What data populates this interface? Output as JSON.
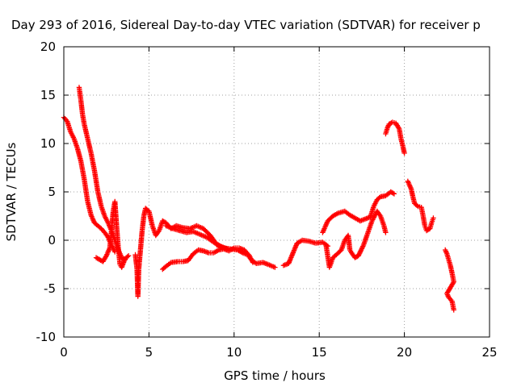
{
  "chart_data": {
    "type": "scatter",
    "title": "Day 293 of 2016, Sidereal Day-to-day VTEC variation (SDTVAR) for receiver p",
    "xlabel": "GPS time / hours",
    "ylabel": "SDTVAR / TECUs",
    "xlim": [
      0,
      25
    ],
    "ylim": [
      -10,
      20
    ],
    "xticks": [
      "0",
      "5",
      "10",
      "15",
      "20",
      "25"
    ],
    "yticks": [
      "-10",
      "-5",
      "0",
      "5",
      "10",
      "15",
      "20"
    ],
    "grid": true,
    "marker": "+",
    "color": "#ff0000",
    "series": [
      {
        "points": [
          [
            0,
            12.7
          ],
          [
            0.2,
            12.3
          ],
          [
            0.4,
            11.2
          ],
          [
            0.6,
            10.5
          ],
          [
            0.8,
            9.5
          ],
          [
            1.0,
            8.2
          ],
          [
            1.2,
            6.3
          ],
          [
            1.4,
            4.0
          ],
          [
            1.6,
            2.6
          ],
          [
            1.8,
            1.8
          ],
          [
            2.0,
            1.5
          ],
          [
            2.2,
            1.2
          ],
          [
            2.4,
            0.8
          ],
          [
            2.6,
            0.3
          ],
          [
            2.8,
            -0.5
          ],
          [
            3.0,
            -1.2
          ]
        ]
      },
      {
        "points": [
          [
            0.9,
            15.8
          ],
          [
            1.0,
            14.5
          ],
          [
            1.1,
            13.0
          ],
          [
            1.2,
            12.0
          ],
          [
            1.4,
            10.5
          ],
          [
            1.6,
            9.0
          ],
          [
            1.8,
            7.2
          ],
          [
            2.0,
            5.0
          ],
          [
            2.2,
            3.5
          ],
          [
            2.4,
            2.5
          ],
          [
            2.6,
            1.8
          ],
          [
            2.8,
            1.0
          ],
          [
            3.0,
            0.0
          ],
          [
            3.2,
            -1.0
          ],
          [
            3.4,
            -1.8
          ],
          [
            3.6,
            -2.0
          ]
        ]
      },
      {
        "points": [
          [
            1.9,
            -1.8
          ],
          [
            2.1,
            -2.0
          ],
          [
            2.3,
            -2.2
          ],
          [
            2.5,
            -1.6
          ],
          [
            2.7,
            -0.8
          ],
          [
            2.8,
            1.0
          ],
          [
            2.9,
            3.0
          ],
          [
            3.0,
            4.0
          ],
          [
            3.1,
            1.5
          ],
          [
            3.2,
            -0.8
          ],
          [
            3.3,
            -2.5
          ],
          [
            3.4,
            -2.8
          ],
          [
            3.6,
            -1.9
          ],
          [
            3.8,
            -1.6
          ]
        ]
      },
      {
        "points": [
          [
            4.2,
            -1.5
          ],
          [
            4.3,
            -3.0
          ],
          [
            4.35,
            -5.8
          ],
          [
            4.4,
            -3.0
          ],
          [
            4.5,
            -1.0
          ],
          [
            4.6,
            1.0
          ],
          [
            4.7,
            2.5
          ],
          [
            4.8,
            3.3
          ],
          [
            5.0,
            3.0
          ],
          [
            5.2,
            1.5
          ],
          [
            5.4,
            0.5
          ],
          [
            5.6,
            1.0
          ],
          [
            5.8,
            2.0
          ],
          [
            6.0,
            1.8
          ],
          [
            6.3,
            1.2
          ],
          [
            6.6,
            1.5
          ],
          [
            7.0,
            1.3
          ],
          [
            7.4,
            1.2
          ],
          [
            7.8,
            1.5
          ],
          [
            8.2,
            1.2
          ],
          [
            8.6,
            0.5
          ],
          [
            9.0,
            -0.5
          ],
          [
            9.4,
            -0.8
          ],
          [
            9.8,
            -0.9
          ],
          [
            10.2,
            -1.0
          ],
          [
            10.5,
            -1.3
          ],
          [
            10.8,
            -1.5
          ],
          [
            11.0,
            -2.0
          ],
          [
            11.3,
            -2.4
          ],
          [
            11.7,
            -2.3
          ],
          [
            12.0,
            -2.5
          ],
          [
            12.4,
            -2.8
          ]
        ]
      },
      {
        "points": [
          [
            5.8,
            -3.0
          ],
          [
            6.0,
            -2.7
          ],
          [
            6.3,
            -2.3
          ],
          [
            6.7,
            -2.2
          ],
          [
            7.0,
            -2.2
          ],
          [
            7.3,
            -2.1
          ],
          [
            7.6,
            -1.4
          ],
          [
            7.9,
            -1.0
          ],
          [
            8.2,
            -1.1
          ],
          [
            8.5,
            -1.3
          ],
          [
            8.8,
            -1.3
          ],
          [
            9.1,
            -1.0
          ],
          [
            9.4,
            -0.9
          ],
          [
            9.7,
            -1.1
          ],
          [
            10.0,
            -0.8
          ],
          [
            10.3,
            -0.8
          ],
          [
            10.6,
            -1.0
          ],
          [
            10.9,
            -1.6
          ],
          [
            11.1,
            -2.3
          ]
        ]
      },
      {
        "points": [
          [
            6.0,
            1.5
          ],
          [
            6.4,
            1.2
          ],
          [
            6.8,
            1.0
          ],
          [
            7.2,
            0.8
          ],
          [
            7.6,
            0.9
          ],
          [
            8.0,
            0.6
          ],
          [
            8.4,
            0.3
          ],
          [
            8.8,
            -0.2
          ],
          [
            9.2,
            -0.6
          ],
          [
            9.6,
            -0.9
          ]
        ]
      },
      {
        "points": [
          [
            12.9,
            -2.6
          ],
          [
            13.2,
            -2.4
          ],
          [
            13.7,
            -0.3
          ],
          [
            14.0,
            0.0
          ],
          [
            14.4,
            -0.1
          ],
          [
            14.8,
            -0.3
          ],
          [
            15.2,
            -0.2
          ],
          [
            15.5,
            -0.6
          ]
        ]
      },
      {
        "points": [
          [
            15.2,
            0.8
          ],
          [
            15.5,
            2.0
          ],
          [
            15.8,
            2.5
          ],
          [
            16.1,
            2.8
          ],
          [
            16.5,
            3.0
          ],
          [
            16.8,
            2.6
          ],
          [
            17.1,
            2.3
          ],
          [
            17.4,
            2.0
          ],
          [
            17.7,
            2.2
          ],
          [
            18.0,
            2.4
          ],
          [
            18.2,
            3.5
          ],
          [
            18.4,
            4.2
          ],
          [
            18.6,
            4.5
          ],
          [
            18.9,
            4.6
          ],
          [
            19.2,
            5.0
          ],
          [
            19.4,
            4.8
          ]
        ]
      },
      {
        "points": [
          [
            15.4,
            -0.5
          ],
          [
            15.6,
            -2.8
          ],
          [
            15.8,
            -1.8
          ],
          [
            16.0,
            -1.5
          ],
          [
            16.3,
            -1.0
          ],
          [
            16.5,
            0.0
          ],
          [
            16.7,
            0.5
          ],
          [
            16.8,
            -1.0
          ],
          [
            16.9,
            -1.3
          ],
          [
            17.1,
            -1.8
          ],
          [
            17.3,
            -1.6
          ],
          [
            17.6,
            -0.5
          ],
          [
            17.9,
            1.0
          ],
          [
            18.1,
            2.0
          ],
          [
            18.4,
            3.0
          ],
          [
            18.6,
            2.5
          ],
          [
            18.8,
            1.5
          ],
          [
            18.9,
            0.8
          ]
        ]
      },
      {
        "points": [
          [
            18.9,
            11.0
          ],
          [
            19.0,
            11.6
          ],
          [
            19.1,
            12.0
          ],
          [
            19.3,
            12.2
          ],
          [
            19.5,
            12.1
          ],
          [
            19.7,
            11.5
          ],
          [
            19.8,
            10.5
          ],
          [
            19.9,
            9.8
          ],
          [
            20.0,
            9.0
          ]
        ]
      },
      {
        "points": [
          [
            20.2,
            6.1
          ],
          [
            20.4,
            5.3
          ],
          [
            20.5,
            4.5
          ],
          [
            20.6,
            3.8
          ],
          [
            20.8,
            3.5
          ],
          [
            21.0,
            3.4
          ],
          [
            21.1,
            2.5
          ],
          [
            21.2,
            1.5
          ],
          [
            21.3,
            1.0
          ],
          [
            21.5,
            1.2
          ],
          [
            21.6,
            1.8
          ],
          [
            21.7,
            2.3
          ]
        ]
      },
      {
        "points": [
          [
            22.4,
            -1.0
          ],
          [
            22.5,
            -1.4
          ],
          [
            22.6,
            -2.0
          ],
          [
            22.7,
            -2.6
          ],
          [
            22.8,
            -3.4
          ],
          [
            22.9,
            -4.3
          ],
          [
            22.5,
            -5.5
          ],
          [
            22.6,
            -5.9
          ],
          [
            22.8,
            -6.3
          ],
          [
            22.9,
            -7.2
          ]
        ]
      }
    ]
  }
}
